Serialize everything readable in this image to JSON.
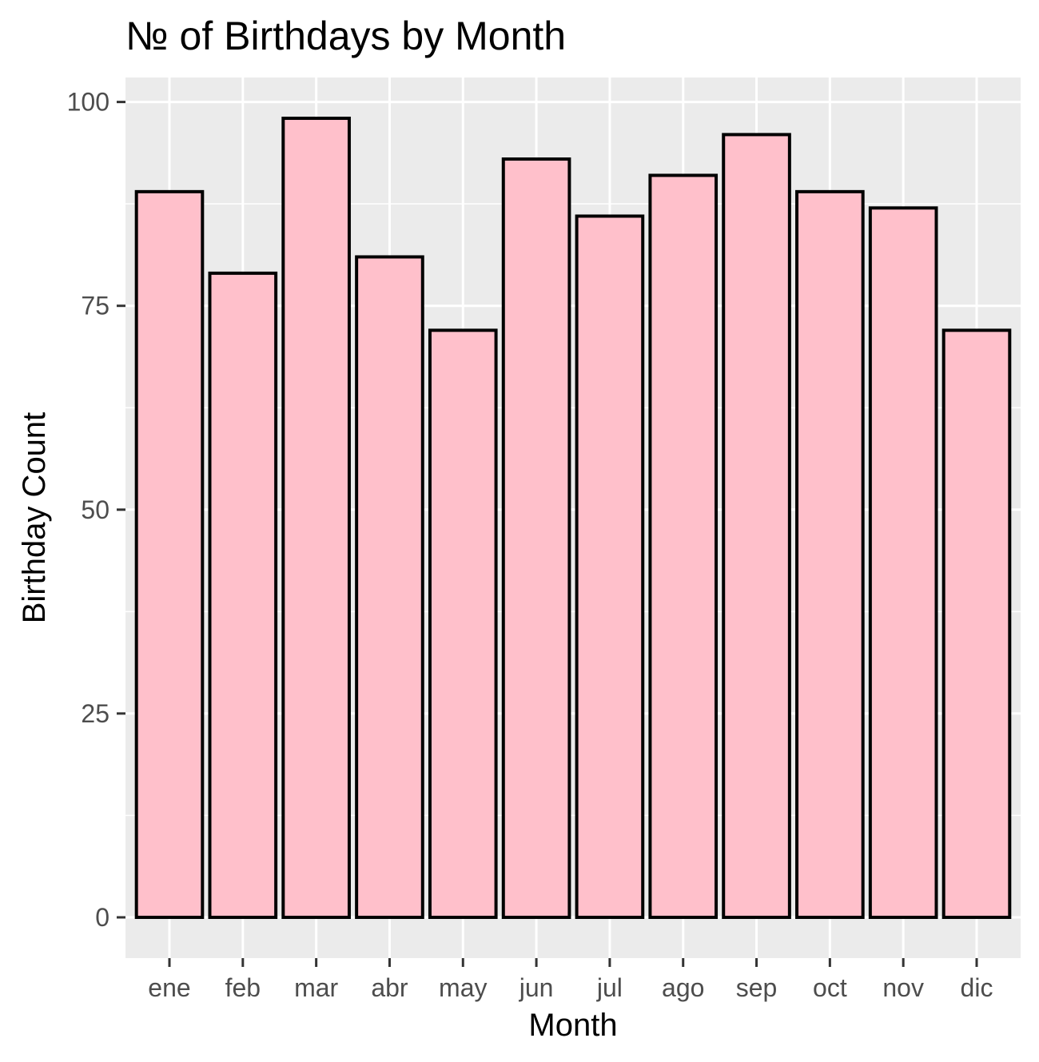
{
  "chart_data": {
    "type": "bar",
    "title": "№ of Birthdays by Month",
    "xlabel": "Month",
    "ylabel": "Birthday Count",
    "categories": [
      "ene",
      "feb",
      "mar",
      "abr",
      "may",
      "jun",
      "jul",
      "ago",
      "sep",
      "oct",
      "nov",
      "dic"
    ],
    "values": [
      89,
      79,
      98,
      81,
      72,
      93,
      86,
      91,
      96,
      89,
      87,
      72
    ],
    "ylim": [
      -5,
      103
    ],
    "yticks": [
      0,
      25,
      50,
      75,
      100
    ],
    "ytick_labels": [
      "0",
      "25",
      "50",
      "75",
      "100"
    ],
    "grid": true,
    "legend": "none",
    "colors": {
      "bar_fill": "#FFC0CB",
      "bar_stroke": "#000000",
      "panel_background": "#EBEBEB",
      "grid": "#FFFFFF",
      "tick_text": "#4D4D4D",
      "tick_mark": "#333333"
    }
  }
}
